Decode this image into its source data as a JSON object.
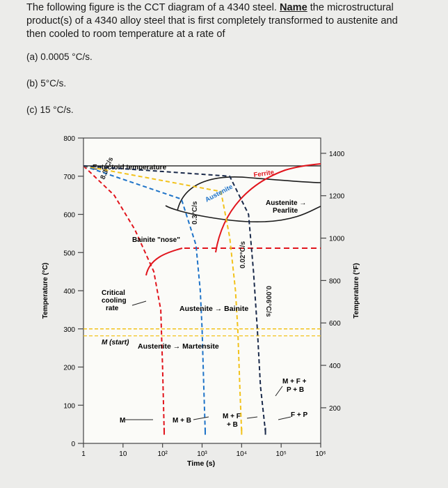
{
  "question": {
    "stem_lines": [
      "The following figure is the CCT diagram of a 4340 steel. ",
      "product(s) of a 4340 alloy steel that is first completely transformed to austenite and",
      "then cooled to room temperature at a rate of"
    ],
    "name_word": "Name",
    "stem_after_name": " the microstructural",
    "parts": [
      "(a) 0.0005 °C/s.",
      "(b) 5°C/s.",
      "(c) 15 °C/s."
    ]
  },
  "chart_data": {
    "type": "line",
    "xlabel": "Time (s)",
    "ylabel_left": "Temperature (°C)",
    "ylabel_right": "Temperature (°F)",
    "x_scale": "log",
    "xlim": [
      1,
      1000000
    ],
    "ylim": [
      0,
      800
    ],
    "x_ticks": [
      "1",
      "10",
      "10²",
      "10³",
      "10⁴",
      "10⁵",
      "10⁶"
    ],
    "y_ticks_left": [
      "0",
      "100",
      "200",
      "300",
      "400",
      "500",
      "600",
      "700",
      "800"
    ],
    "y_ticks_right": [
      "200",
      "400",
      "600",
      "800",
      "1000",
      "1200",
      "1400"
    ],
    "y_ticks_right_values_F": [
      200,
      400,
      600,
      800,
      1000,
      1200,
      1400
    ],
    "labels": {
      "eutectoid": "Eutectoid temperature",
      "austenite": "Austenite",
      "ferrite": "Ferrite",
      "austenite_pearlite_1": "Austenite →",
      "austenite_pearlite_2": "Pearlite",
      "bainite_nose": "Bainite \"nose\"",
      "critical_1": "Critical",
      "critical_2": "cooling",
      "critical_3": "rate",
      "austenite_bainite": "Austenite → Bainite",
      "m_start": "M (start)",
      "austenite_martensite": "Austenite → Martensite",
      "mfpb_1": "M + F +",
      "mfpb_2": "P + B",
      "m": "M",
      "mb": "M + B",
      "mfb_1": "M + F",
      "mfb_2": "+ B",
      "fp": "F + P"
    },
    "rate_labels": [
      "8.3°C/s",
      "0.3°C/s",
      "0.02°C/s",
      "0.006°C/s"
    ],
    "eutectoid_temperature_C": 727,
    "martensite_start_C": 300,
    "series": [
      {
        "name": "8.3°C/s",
        "color": "#e1141c",
        "points": [
          [
            1,
            727
          ],
          [
            6,
            650
          ],
          [
            20,
            560
          ],
          [
            60,
            450
          ],
          [
            90,
            350
          ],
          [
            100,
            200
          ],
          [
            110,
            30
          ]
        ]
      },
      {
        "name": "0.3°C/s",
        "color": "#1e73c8",
        "points": [
          [
            1,
            727
          ],
          [
            300,
            640
          ],
          [
            700,
            520
          ],
          [
            900,
            400
          ],
          [
            1000,
            300
          ],
          [
            1100,
            150
          ],
          [
            1200,
            30
          ]
        ]
      },
      {
        "name": "0.02°C/s",
        "color": "#f2c21b",
        "points": [
          [
            1,
            727
          ],
          [
            3000,
            660
          ],
          [
            5000,
            540
          ],
          [
            7000,
            400
          ],
          [
            8000,
            300
          ],
          [
            9000,
            150
          ],
          [
            10000,
            30
          ]
        ]
      },
      {
        "name": "0.006°C/s",
        "color": "#1a2a4a",
        "points": [
          [
            1,
            727
          ],
          [
            5000,
            700
          ],
          [
            15000,
            600
          ],
          [
            20000,
            450
          ],
          [
            25000,
            300
          ],
          [
            30000,
            150
          ],
          [
            40000,
            30
          ]
        ]
      }
    ]
  },
  "colors": {
    "background": "#ececea",
    "plot_bg": "#fbfbf8",
    "transformation_curve": "#e1141c",
    "boundary_curve": "#1c1c1c"
  }
}
